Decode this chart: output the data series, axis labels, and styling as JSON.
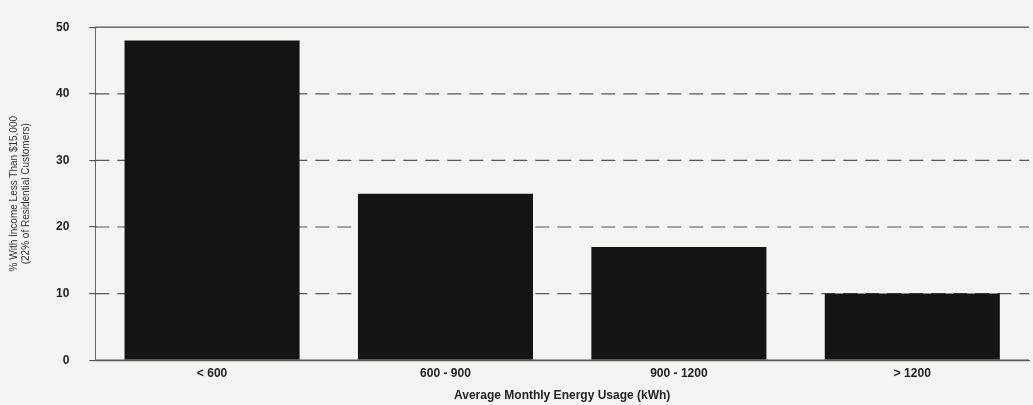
{
  "chart_data": {
    "type": "bar",
    "xlabel": "Average Monthly Energy Usage (kWh)",
    "ylabel": "% With Income Less Than $15,000\n(22% of Residential Customers)",
    "categories": [
      "< 600",
      "600 - 900",
      "900 - 1200",
      "> 1200"
    ],
    "values": [
      48,
      25,
      17,
      10
    ],
    "color": "#141414",
    "ylim": [
      0,
      50
    ],
    "yticks": [
      0,
      10,
      20,
      30,
      40,
      50
    ],
    "grid": "y"
  }
}
